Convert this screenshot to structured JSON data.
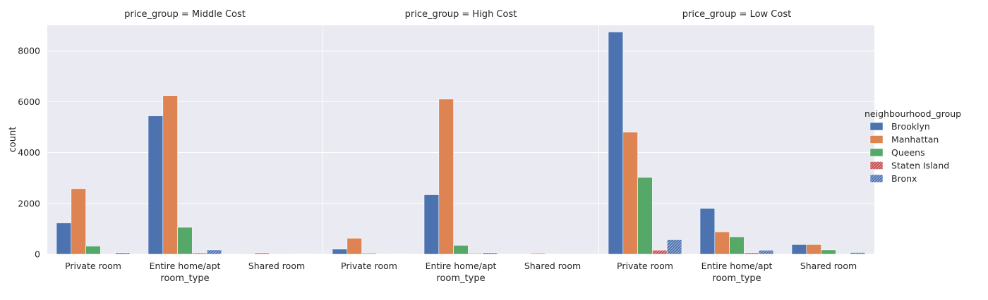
{
  "chart_data": {
    "type": "bar",
    "xlabel": "room_type",
    "ylabel": "count",
    "ylim": [
      0,
      9000
    ],
    "yticks": [
      0,
      2000,
      4000,
      6000,
      8000
    ],
    "grid": true,
    "legend": {
      "title": "neighbourhood_group",
      "placement": "right",
      "entries": [
        "Brooklyn",
        "Manhattan",
        "Queens",
        "Staten Island",
        "Bronx"
      ]
    },
    "colors": {
      "Brooklyn": "#4c72b0",
      "Manhattan": "#dd8452",
      "Queens": "#55a868",
      "Staten Island": "#c44e52",
      "Bronx": "#4c72b0"
    },
    "categories": [
      "Private room",
      "Entire home/apt",
      "Shared room"
    ],
    "panels": [
      {
        "title": "price_group = Middle Cost",
        "series": [
          {
            "name": "Brooklyn",
            "values": [
              1230,
              5440,
              20
            ]
          },
          {
            "name": "Manhattan",
            "values": [
              2580,
              6240,
              60
            ]
          },
          {
            "name": "Queens",
            "values": [
              320,
              1060,
              20
            ]
          },
          {
            "name": "Staten Island",
            "values": [
              20,
              50,
              5
            ]
          },
          {
            "name": "Bronx",
            "values": [
              60,
              170,
              10
            ]
          }
        ]
      },
      {
        "title": "price_group = High Cost",
        "series": [
          {
            "name": "Brooklyn",
            "values": [
              200,
              2340,
              5
            ]
          },
          {
            "name": "Manhattan",
            "values": [
              630,
              6100,
              40
            ]
          },
          {
            "name": "Queens",
            "values": [
              40,
              350,
              5
            ]
          },
          {
            "name": "Staten Island",
            "values": [
              5,
              30,
              2
            ]
          },
          {
            "name": "Bronx",
            "values": [
              10,
              60,
              2
            ]
          }
        ]
      },
      {
        "title": "price_group = Low Cost",
        "series": [
          {
            "name": "Brooklyn",
            "values": [
              8740,
              1800,
              380
            ]
          },
          {
            "name": "Manhattan",
            "values": [
              4800,
              880,
              380
            ]
          },
          {
            "name": "Queens",
            "values": [
              3020,
              680,
              170
            ]
          },
          {
            "name": "Staten Island",
            "values": [
              160,
              60,
              20
            ]
          },
          {
            "name": "Bronx",
            "values": [
              570,
              160,
              70
            ]
          }
        ]
      }
    ]
  }
}
